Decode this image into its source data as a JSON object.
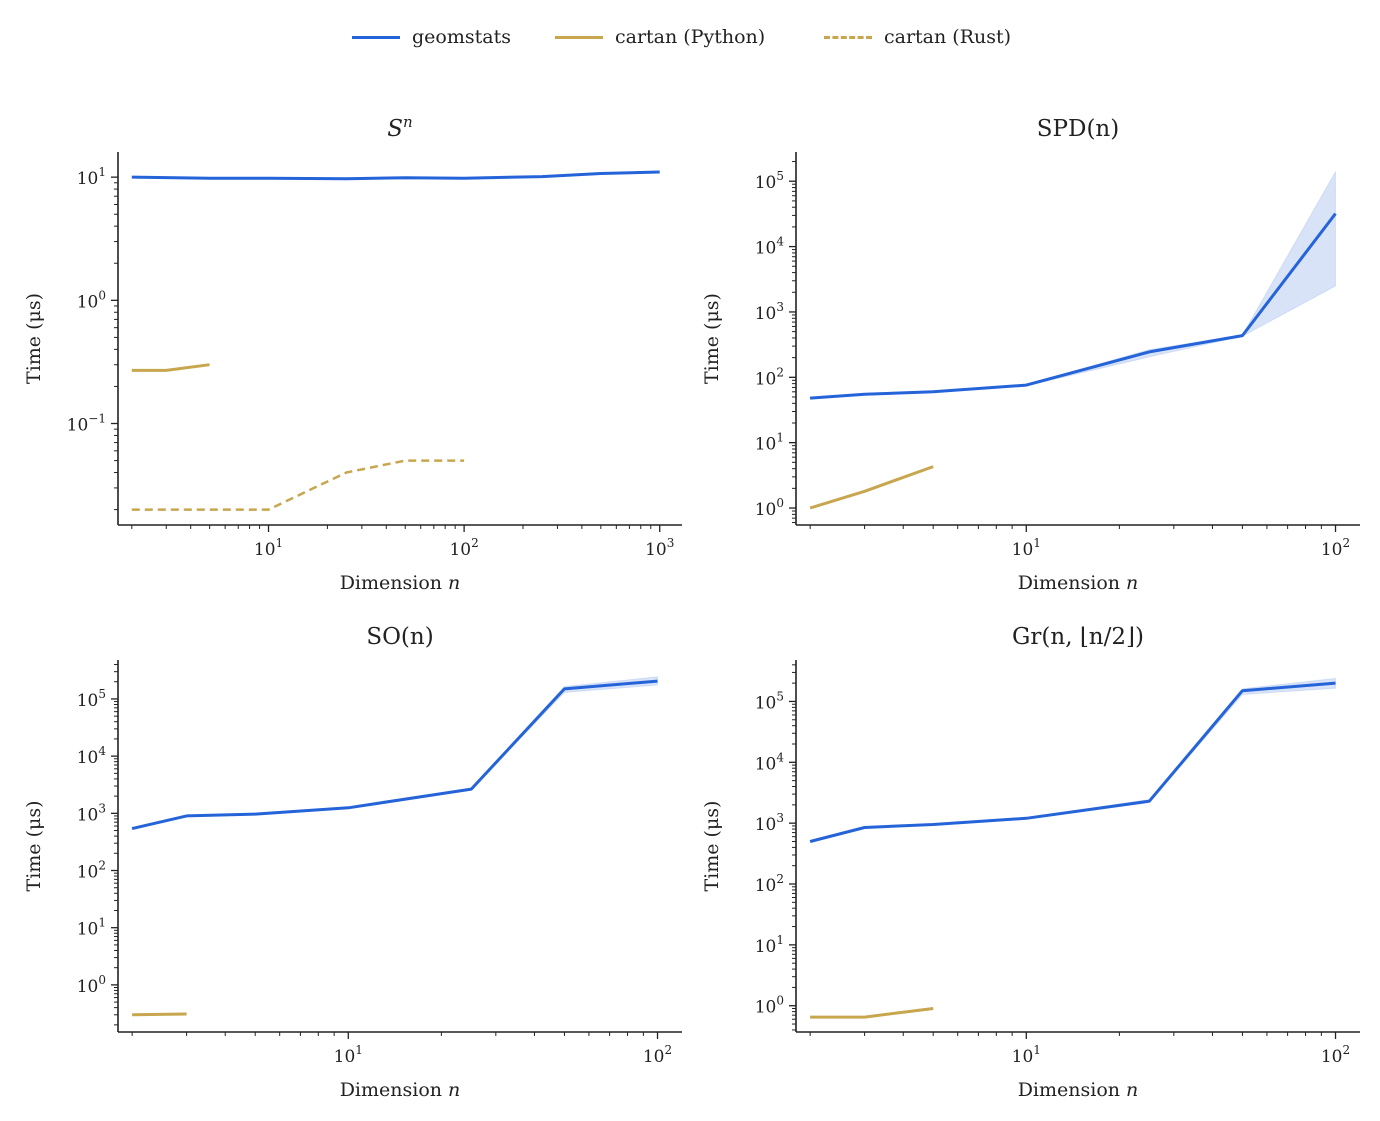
{
  "legend": [
    {
      "name": "geomstats",
      "color": "#2563d9",
      "dash": "solid"
    },
    {
      "name": "cartan (Python)",
      "color": "#c8a64e",
      "dash": "solid"
    },
    {
      "name": "cartan (Rust)",
      "color": "#c8a64e",
      "dash": "dashed"
    }
  ],
  "chart_data": [
    {
      "type": "line",
      "title": "S^n",
      "xlabel": "Dimension n",
      "ylabel": "Time (μs)",
      "xscale": "log",
      "yscale": "log",
      "xlim": [
        1.7,
        1300
      ],
      "ylim": [
        0.015,
        16
      ],
      "xticks": [
        {
          "value": 10,
          "label": "10^1"
        },
        {
          "value": 100,
          "label": "10^2"
        },
        {
          "value": 1000,
          "label": "10^3"
        }
      ],
      "yticks": [
        {
          "value": 0.1,
          "label": "10^-1"
        },
        {
          "value": 1,
          "label": "10^0"
        },
        {
          "value": 10,
          "label": "10^1"
        }
      ],
      "series": [
        {
          "name": "geomstats",
          "x": [
            2,
            5,
            10,
            25,
            50,
            100,
            250,
            500,
            1000
          ],
          "y": [
            10,
            9.8,
            9.8,
            9.7,
            9.9,
            9.8,
            10.1,
            10.7,
            11.0
          ]
        },
        {
          "name": "cartan (Python)",
          "x": [
            2,
            3,
            5
          ],
          "y": [
            0.27,
            0.27,
            0.3
          ]
        },
        {
          "name": "cartan (Rust)",
          "x": [
            2,
            5,
            10,
            25,
            50,
            100
          ],
          "y": [
            0.02,
            0.02,
            0.02,
            0.04,
            0.05,
            0.05
          ]
        }
      ]
    },
    {
      "type": "line",
      "title": "SPD(n)",
      "xlabel": "Dimension n",
      "ylabel": "Time (μs)",
      "xscale": "log",
      "yscale": "log",
      "xlim": [
        1.8,
        120
      ],
      "ylim": [
        0.55,
        280000
      ],
      "xticks": [
        {
          "value": 10,
          "label": "10^1"
        },
        {
          "value": 100,
          "label": "10^2"
        }
      ],
      "yticks": [
        {
          "value": 1,
          "label": "10^0"
        },
        {
          "value": 10,
          "label": "10^1"
        },
        {
          "value": 100,
          "label": "10^2"
        },
        {
          "value": 1000,
          "label": "10^3"
        },
        {
          "value": 10000,
          "label": "10^4"
        },
        {
          "value": 100000,
          "label": "10^5"
        }
      ],
      "series": [
        {
          "name": "geomstats",
          "x": [
            2,
            3,
            5,
            10,
            25,
            50,
            100
          ],
          "y": [
            48,
            55,
            60,
            76,
            245,
            435,
            32000
          ],
          "band_low": [
            47,
            54,
            59,
            74,
            205,
            425,
            2500
          ],
          "band_high": [
            49,
            56,
            61,
            78,
            265,
            445,
            140000
          ]
        },
        {
          "name": "cartan (Python)",
          "x": [
            2,
            3,
            5
          ],
          "y": [
            1.0,
            1.8,
            4.3
          ]
        }
      ]
    },
    {
      "type": "line",
      "title": "SO(n)",
      "xlabel": "Dimension n",
      "ylabel": "Time (μs)",
      "xscale": "log",
      "yscale": "log",
      "xlim": [
        1.8,
        120
      ],
      "ylim": [
        0.15,
        480000
      ],
      "xticks": [
        {
          "value": 10,
          "label": "10^1"
        },
        {
          "value": 100,
          "label": "10^2"
        }
      ],
      "yticks": [
        {
          "value": 1,
          "label": "10^0"
        },
        {
          "value": 10,
          "label": "10^1"
        },
        {
          "value": 100,
          "label": "10^2"
        },
        {
          "value": 1000,
          "label": "10^3"
        },
        {
          "value": 10000,
          "label": "10^4"
        },
        {
          "value": 100000,
          "label": "10^5"
        }
      ],
      "series": [
        {
          "name": "geomstats",
          "x": [
            2,
            3,
            5,
            10,
            25,
            50,
            100
          ],
          "y": [
            540,
            900,
            970,
            1250,
            2650,
            150000,
            205000
          ],
          "band_low": [
            530,
            880,
            950,
            1220,
            2600,
            130000,
            175000
          ],
          "band_high": [
            550,
            920,
            990,
            1280,
            2700,
            165000,
            245000
          ]
        },
        {
          "name": "cartan (Python)",
          "x": [
            2,
            3
          ],
          "y": [
            0.3,
            0.31
          ]
        }
      ]
    },
    {
      "type": "line",
      "title": "Gr(n, ⌊n/2⌋)",
      "xlabel": "Dimension n",
      "ylabel": "Time (μs)",
      "xscale": "log",
      "yscale": "log",
      "xlim": [
        1.8,
        120
      ],
      "ylim": [
        0.37,
        480000
      ],
      "xticks": [
        {
          "value": 10,
          "label": "10^1"
        },
        {
          "value": 100,
          "label": "10^2"
        }
      ],
      "yticks": [
        {
          "value": 1,
          "label": "10^0"
        },
        {
          "value": 10,
          "label": "10^1"
        },
        {
          "value": 100,
          "label": "10^2"
        },
        {
          "value": 1000,
          "label": "10^3"
        },
        {
          "value": 10000,
          "label": "10^4"
        },
        {
          "value": 100000,
          "label": "10^5"
        }
      ],
      "series": [
        {
          "name": "geomstats",
          "x": [
            2,
            3,
            5,
            10,
            25,
            50,
            100
          ],
          "y": [
            500,
            850,
            950,
            1200,
            2300,
            150000,
            200000
          ],
          "band_low": [
            490,
            830,
            930,
            1170,
            2200,
            130000,
            165000
          ],
          "band_high": [
            510,
            870,
            970,
            1230,
            2450,
            162000,
            240000
          ]
        },
        {
          "name": "cartan (Python)",
          "x": [
            2,
            3,
            5
          ],
          "y": [
            0.65,
            0.65,
            0.9
          ]
        }
      ]
    }
  ]
}
